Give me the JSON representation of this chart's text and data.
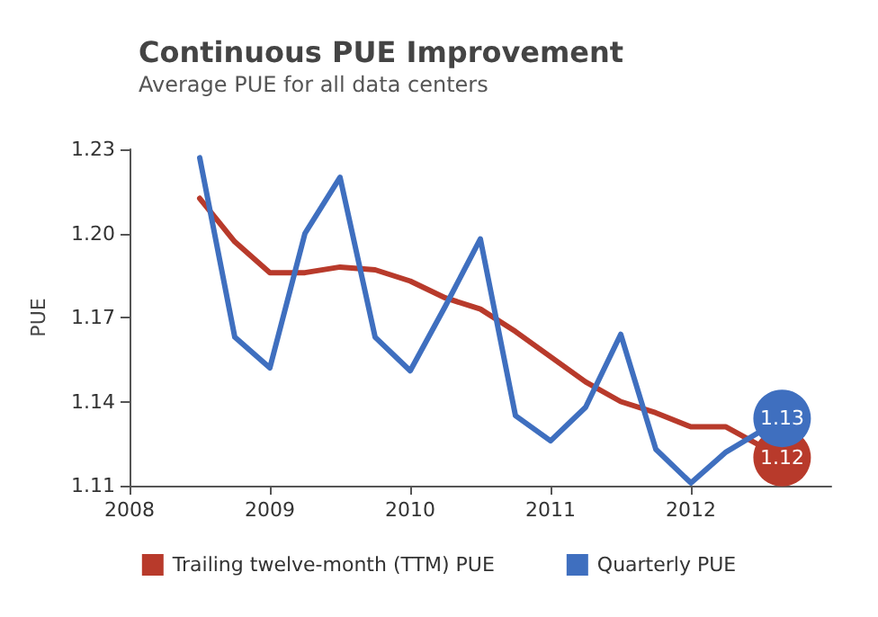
{
  "chart_data": {
    "type": "line",
    "title": "Continuous PUE Improvement",
    "subtitle": "Average PUE for all data centers",
    "ylabel": "PUE",
    "xlim": [
      2008,
      2013
    ],
    "xticks": [
      2008,
      2009,
      2010,
      2011,
      2012
    ],
    "ylim": [
      1.11,
      1.23
    ],
    "yticks": [
      1.11,
      1.14,
      1.17,
      {
        "value": 1.2,
        "label": "1.20"
      },
      1.23
    ],
    "grid": false,
    "legend": "bottom",
    "marker": "none",
    "line_style": "solid",
    "series": [
      {
        "name": "Trailing twelve-month (TTM) PUE",
        "color": "#b83a2b",
        "x": [
          2008.5,
          2008.75,
          2009,
          2009.25,
          2009.5,
          2009.75,
          2010,
          2010.25,
          2010.5,
          2010.75,
          2011,
          2011.25,
          2011.5,
          2011.75,
          2012,
          2012.25,
          2012.65
        ],
        "values": [
          1.2125,
          1.197,
          1.186,
          1.186,
          1.188,
          1.187,
          1.183,
          1.177,
          1.173,
          1.165,
          1.156,
          1.147,
          1.14,
          1.136,
          1.131,
          1.131,
          1.12
        ],
        "value_labels": [
          null,
          null,
          null,
          null,
          null,
          null,
          null,
          null,
          null,
          null,
          null,
          null,
          null,
          null,
          null,
          null,
          "1.12"
        ]
      },
      {
        "name": "Quarterly PUE",
        "color": "#3f6fbf",
        "x": [
          2008.5,
          2008.75,
          2009,
          2009.25,
          2009.5,
          2009.75,
          2010,
          2010.25,
          2010.5,
          2010.75,
          2011,
          2011.25,
          2011.5,
          2011.75,
          2012,
          2012.25,
          2012.65
        ],
        "values": [
          1.227,
          1.163,
          1.152,
          1.2,
          1.22,
          1.163,
          1.151,
          1.174,
          1.198,
          1.135,
          1.126,
          1.138,
          1.164,
          1.123,
          1.111,
          1.122,
          1.134
        ],
        "value_labels": [
          null,
          null,
          null,
          null,
          null,
          null,
          null,
          null,
          null,
          null,
          null,
          null,
          null,
          null,
          null,
          null,
          "1.13"
        ]
      }
    ]
  }
}
